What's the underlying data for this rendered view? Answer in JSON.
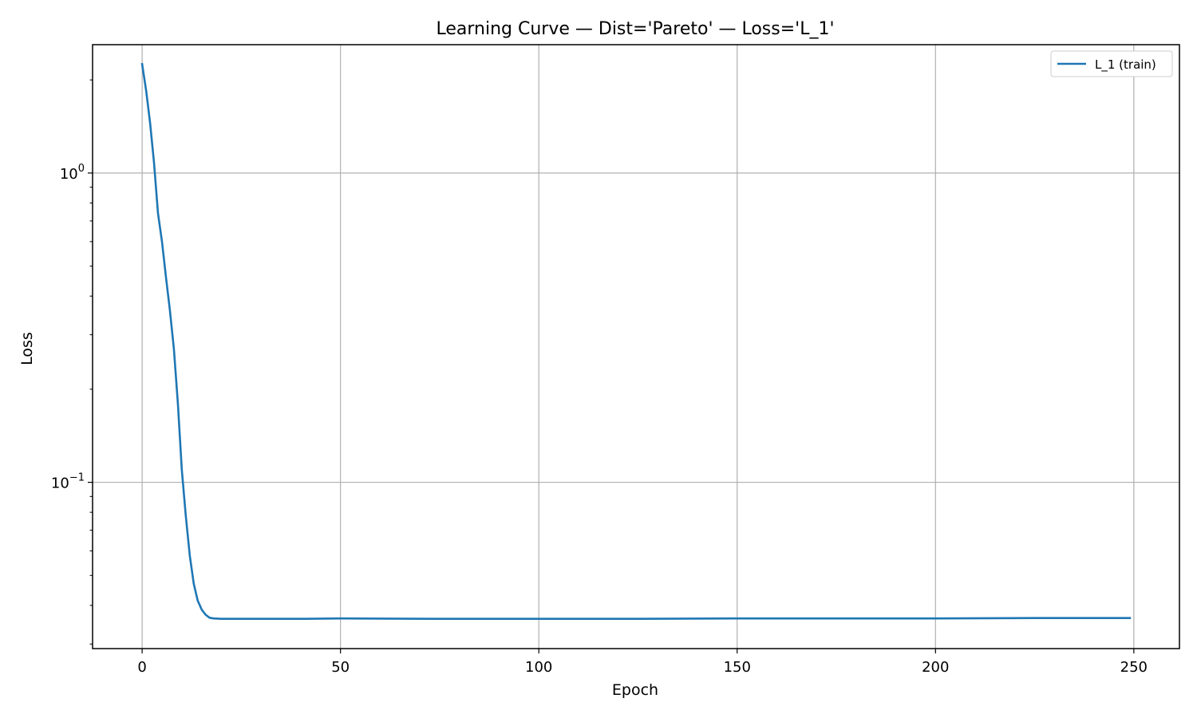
{
  "chart_data": {
    "type": "line",
    "title": "Learning Curve — Dist='Pareto' — Loss='L_1'",
    "xlabel": "Epoch",
    "ylabel": "Loss",
    "xlim": [
      -12.5,
      261.5
    ],
    "ylim": [
      0.029,
      2.6
    ],
    "yscale": "log",
    "grid": true,
    "legend_position": "top-right",
    "x_ticks": [
      {
        "value": 0,
        "label": "0"
      },
      {
        "value": 50,
        "label": "50"
      },
      {
        "value": 100,
        "label": "100"
      },
      {
        "value": 150,
        "label": "150"
      },
      {
        "value": 200,
        "label": "200"
      },
      {
        "value": 250,
        "label": "250"
      }
    ],
    "y_ticks": [
      {
        "value": 1,
        "base": "10",
        "exp": "0"
      },
      {
        "value": 0.1,
        "base": "10",
        "exp": "−1"
      }
    ],
    "series": [
      {
        "name": "L_1 (train)",
        "color": "#1f77b4",
        "points": [
          [
            0,
            2.25
          ],
          [
            1,
            1.85
          ],
          [
            2,
            1.45
          ],
          [
            3,
            1.08
          ],
          [
            4,
            0.74
          ],
          [
            5,
            0.6
          ],
          [
            6,
            0.46
          ],
          [
            7,
            0.36
          ],
          [
            8,
            0.27
          ],
          [
            9,
            0.18
          ],
          [
            10,
            0.11
          ],
          [
            11,
            0.078
          ],
          [
            12,
            0.058
          ],
          [
            13,
            0.047
          ],
          [
            14,
            0.0415
          ],
          [
            15,
            0.0388
          ],
          [
            16,
            0.0373
          ],
          [
            17,
            0.0365
          ],
          [
            18,
            0.0363
          ],
          [
            20,
            0.0362
          ],
          [
            25,
            0.0362
          ],
          [
            30,
            0.0362
          ],
          [
            40,
            0.0362
          ],
          [
            50,
            0.0363
          ],
          [
            75,
            0.0362
          ],
          [
            100,
            0.0362
          ],
          [
            125,
            0.0362
          ],
          [
            150,
            0.0363
          ],
          [
            175,
            0.0363
          ],
          [
            200,
            0.0363
          ],
          [
            225,
            0.0364
          ],
          [
            249,
            0.0364
          ]
        ]
      }
    ]
  }
}
